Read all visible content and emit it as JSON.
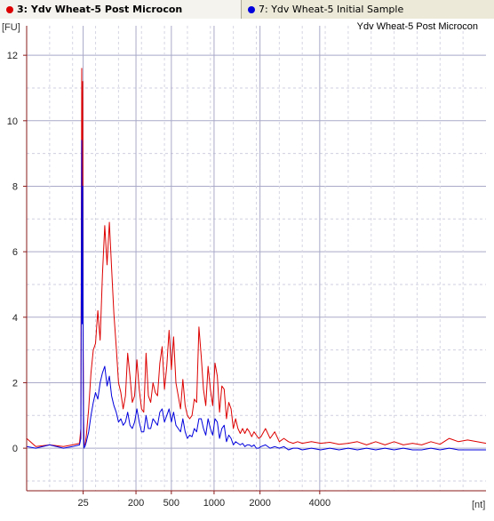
{
  "tabs": [
    {
      "label": "3: Ydv Wheat-5 Post Microcon",
      "color": "#dd0000",
      "active": true
    },
    {
      "label": "7: Ydv Wheat-5 Initial Sample",
      "color": "#0000dd",
      "active": false
    }
  ],
  "chart_data": {
    "type": "line",
    "title": "Ydv Wheat-5 Post Microcon",
    "ylabel": "[FU]",
    "xlabel": "[nt]",
    "ylim": [
      -1.3,
      12.9
    ],
    "yticks": [
      0,
      2,
      4,
      6,
      8,
      10,
      12
    ],
    "x_ticks": [
      {
        "label": "25",
        "pos": 0.123
      },
      {
        "label": "200",
        "pos": 0.238
      },
      {
        "label": "500",
        "pos": 0.315
      },
      {
        "label": "1000",
        "pos": 0.408
      },
      {
        "label": "2000",
        "pos": 0.508
      },
      {
        "label": "4000",
        "pos": 0.638
      }
    ],
    "grid": true,
    "series": [
      {
        "name": "3: Ydv Wheat-5 Post Microcon",
        "color": "#dd0000",
        "x": [
          0.0,
          0.02,
          0.05,
          0.08,
          0.1,
          0.115,
          0.118,
          0.12,
          0.121,
          0.122,
          0.123,
          0.124,
          0.125,
          0.126,
          0.127,
          0.13,
          0.135,
          0.14,
          0.145,
          0.15,
          0.155,
          0.16,
          0.165,
          0.17,
          0.175,
          0.18,
          0.185,
          0.19,
          0.195,
          0.2,
          0.205,
          0.21,
          0.215,
          0.22,
          0.225,
          0.23,
          0.235,
          0.24,
          0.245,
          0.25,
          0.255,
          0.26,
          0.265,
          0.27,
          0.275,
          0.28,
          0.285,
          0.29,
          0.295,
          0.3,
          0.305,
          0.31,
          0.315,
          0.32,
          0.325,
          0.33,
          0.335,
          0.34,
          0.345,
          0.35,
          0.355,
          0.36,
          0.365,
          0.37,
          0.375,
          0.38,
          0.385,
          0.39,
          0.395,
          0.4,
          0.405,
          0.41,
          0.415,
          0.42,
          0.425,
          0.43,
          0.435,
          0.44,
          0.445,
          0.45,
          0.455,
          0.46,
          0.465,
          0.47,
          0.475,
          0.48,
          0.485,
          0.49,
          0.495,
          0.5,
          0.505,
          0.51,
          0.52,
          0.53,
          0.54,
          0.55,
          0.56,
          0.57,
          0.58,
          0.59,
          0.6,
          0.62,
          0.64,
          0.66,
          0.68,
          0.7,
          0.72,
          0.74,
          0.76,
          0.78,
          0.8,
          0.82,
          0.84,
          0.86,
          0.88,
          0.9,
          0.92,
          0.94,
          0.96,
          0.98,
          1.0
        ],
        "y": [
          0.3,
          0.05,
          0.1,
          0.05,
          0.1,
          0.15,
          0.6,
          11.6,
          4.0,
          11.2,
          3.0,
          0.8,
          0.1,
          0.1,
          0.1,
          0.4,
          1.2,
          2.3,
          3.0,
          3.2,
          4.2,
          3.3,
          5.3,
          6.8,
          5.6,
          6.9,
          5.5,
          4.1,
          3.1,
          2.0,
          1.7,
          1.2,
          1.6,
          2.9,
          2.2,
          1.4,
          1.6,
          2.7,
          1.8,
          1.2,
          1.1,
          2.9,
          1.6,
          1.4,
          2.0,
          1.7,
          1.6,
          2.6,
          3.1,
          1.8,
          2.5,
          3.6,
          2.4,
          3.4,
          2.0,
          1.6,
          1.2,
          2.1,
          1.3,
          1.0,
          0.9,
          1.0,
          1.5,
          1.4,
          3.7,
          2.8,
          1.8,
          1.3,
          2.5,
          1.8,
          1.3,
          2.6,
          2.2,
          1.1,
          1.9,
          1.8,
          0.9,
          1.4,
          1.2,
          0.6,
          0.9,
          0.6,
          0.45,
          0.6,
          0.45,
          0.6,
          0.5,
          0.35,
          0.5,
          0.4,
          0.3,
          0.35,
          0.6,
          0.3,
          0.5,
          0.2,
          0.3,
          0.2,
          0.15,
          0.2,
          0.15,
          0.2,
          0.15,
          0.18,
          0.12,
          0.15,
          0.2,
          0.1,
          0.2,
          0.1,
          0.2,
          0.1,
          0.15,
          0.1,
          0.2,
          0.12,
          0.3,
          0.2,
          0.25,
          0.2,
          0.15
        ]
      },
      {
        "name": "7: Ydv Wheat-5 Initial Sample",
        "color": "#0000dd",
        "x": [
          0.0,
          0.02,
          0.05,
          0.08,
          0.1,
          0.115,
          0.118,
          0.12,
          0.121,
          0.122,
          0.123,
          0.124,
          0.125,
          0.126,
          0.127,
          0.13,
          0.135,
          0.14,
          0.145,
          0.15,
          0.155,
          0.16,
          0.165,
          0.17,
          0.175,
          0.18,
          0.185,
          0.19,
          0.195,
          0.2,
          0.205,
          0.21,
          0.215,
          0.22,
          0.225,
          0.23,
          0.235,
          0.24,
          0.245,
          0.25,
          0.255,
          0.26,
          0.265,
          0.27,
          0.275,
          0.28,
          0.285,
          0.29,
          0.295,
          0.3,
          0.305,
          0.31,
          0.315,
          0.32,
          0.325,
          0.33,
          0.335,
          0.34,
          0.345,
          0.35,
          0.355,
          0.36,
          0.365,
          0.37,
          0.375,
          0.38,
          0.385,
          0.39,
          0.395,
          0.4,
          0.405,
          0.41,
          0.415,
          0.42,
          0.425,
          0.43,
          0.435,
          0.44,
          0.445,
          0.45,
          0.455,
          0.46,
          0.465,
          0.47,
          0.475,
          0.48,
          0.485,
          0.49,
          0.495,
          0.5,
          0.505,
          0.51,
          0.52,
          0.53,
          0.54,
          0.55,
          0.56,
          0.57,
          0.58,
          0.59,
          0.6,
          0.62,
          0.64,
          0.66,
          0.68,
          0.7,
          0.72,
          0.74,
          0.76,
          0.78,
          0.8,
          0.82,
          0.84,
          0.86,
          0.88,
          0.9,
          0.92,
          0.94,
          0.96,
          0.98,
          1.0
        ],
        "y": [
          0.05,
          0.0,
          0.1,
          0.0,
          0.05,
          0.1,
          0.3,
          9.4,
          3.8,
          8.0,
          2.7,
          0.5,
          0.0,
          0.05,
          0.05,
          0.2,
          0.5,
          1.0,
          1.4,
          1.7,
          1.5,
          2.0,
          2.3,
          2.5,
          1.9,
          2.2,
          1.6,
          1.3,
          1.1,
          0.8,
          0.9,
          0.7,
          0.8,
          1.1,
          0.7,
          0.6,
          0.8,
          1.2,
          0.8,
          0.5,
          0.5,
          1.0,
          0.6,
          0.6,
          0.9,
          0.8,
          0.7,
          1.1,
          1.2,
          0.8,
          1.0,
          1.2,
          0.8,
          1.1,
          0.7,
          0.6,
          0.5,
          0.9,
          0.5,
          0.3,
          0.4,
          0.35,
          0.6,
          0.5,
          0.9,
          0.9,
          0.6,
          0.4,
          0.9,
          0.6,
          0.4,
          0.9,
          0.8,
          0.3,
          0.6,
          0.7,
          0.2,
          0.4,
          0.3,
          0.1,
          0.2,
          0.15,
          0.1,
          0.15,
          0.05,
          0.1,
          0.1,
          0.05,
          0.1,
          0.0,
          0.0,
          0.05,
          0.1,
          0.0,
          0.05,
          0.0,
          0.05,
          -0.05,
          0.0,
          0.0,
          -0.05,
          0.0,
          -0.05,
          0.0,
          -0.05,
          0.0,
          -0.05,
          0.0,
          -0.05,
          0.0,
          -0.05,
          0.0,
          -0.05,
          -0.05,
          0.0,
          -0.05,
          0.0,
          -0.05,
          -0.05,
          -0.05,
          -0.05
        ]
      }
    ]
  }
}
